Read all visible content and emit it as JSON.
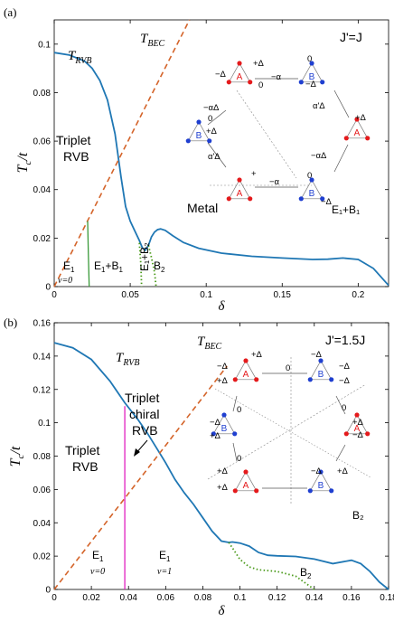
{
  "colors": {
    "rvb_curve": "#1f77b4",
    "bec_line": "#d4642a",
    "phase_boundary_solid_a": "#3a9a3a",
    "phase_boundary_b": "#e020c0",
    "phase_boundary_dotted": "#4a9a1a",
    "site_A": "#e41a1c",
    "site_B": "#1f3fd0"
  },
  "chart_data": [
    {
      "panel": "(a)",
      "type": "line",
      "xlabel": "δ",
      "ylabel": "T_c/t",
      "xlim": [
        0,
        0.22
      ],
      "ylim": [
        0,
        0.11
      ],
      "xticks": [
        "0",
        "0.05",
        "0.1",
        "0.15",
        "0.2"
      ],
      "yticks": [
        "0",
        "0.02",
        "0.04",
        "0.06",
        "0.08",
        "0.1"
      ],
      "corner_label": "J'=J",
      "series": [
        {
          "name": "T_RVB",
          "style": "solid",
          "color": "rvb_curve",
          "x": [
            0,
            0.01,
            0.02,
            0.025,
            0.03,
            0.035,
            0.04,
            0.044,
            0.047,
            0.05,
            0.053,
            0.056,
            0.058,
            0.06,
            0.062,
            0.064,
            0.066,
            0.068,
            0.07,
            0.073,
            0.078,
            0.085,
            0.095,
            0.11,
            0.13,
            0.15,
            0.17,
            0.18,
            0.19,
            0.2,
            0.21,
            0.22
          ],
          "y": [
            0.0965,
            0.0955,
            0.093,
            0.09,
            0.085,
            0.077,
            0.063,
            0.045,
            0.033,
            0.027,
            0.023,
            0.019,
            0.016,
            0.015,
            0.017,
            0.0205,
            0.0225,
            0.0235,
            0.0238,
            0.0232,
            0.021,
            0.0182,
            0.0158,
            0.0138,
            0.0125,
            0.0118,
            0.0112,
            0.0113,
            0.0118,
            0.0112,
            0.0075,
            0.0005
          ]
        },
        {
          "name": "T_BEC",
          "style": "dashed",
          "color": "bec_line",
          "x": [
            0,
            0.089
          ],
          "y": [
            0,
            0.11
          ]
        },
        {
          "name": "E1/E1+B1 boundary",
          "style": "solid",
          "color": "phase_boundary_solid_a",
          "x": [
            0.022,
            0.0225,
            0.023
          ],
          "y": [
            0.027,
            0.013,
            0
          ]
        },
        {
          "name": "E1+B1/E1+B2 boundary",
          "style": "dotted",
          "color": "phase_boundary_dotted",
          "x": [
            0.056,
            0.057,
            0.0575
          ],
          "y": [
            0.018,
            0.009,
            0
          ]
        },
        {
          "name": "E1+B2/B2 boundary",
          "style": "dotted",
          "color": "phase_boundary_dotted",
          "x": [
            0.062,
            0.064,
            0.066,
            0.067
          ],
          "y": [
            0.017,
            0.012,
            0.006,
            0
          ]
        }
      ],
      "annotations": {
        "t_rvb_main": "T",
        "t_rvb_sub": "RVB",
        "t_bec_main": "T",
        "t_bec_sub": "BEC",
        "triplet": "Triplet",
        "rvb": "RVB",
        "metal": "Metal",
        "e1": "E",
        "e1_sub": "1",
        "nu0": "ν=0",
        "e1b1_e": "E",
        "e1b1_sub1": "1",
        "e1b1_plus": "+B",
        "e1b1_sub2": "1",
        "b2": "B",
        "b2_sub": "2",
        "e1b2_vertical": "E₁+B₂"
      },
      "inset": {
        "labels_A": "A",
        "labels_B": "B",
        "bond_terms": [
          "+Δ",
          "−Δ",
          "0",
          "−α",
          "−αΔ",
          "α'Δ",
          "α'Δ",
          "−αΔ",
          "−α",
          "+",
          "0",
          "0",
          "0",
          "−Δ",
          "+Δ",
          "+Δ",
          "−Δ"
        ],
        "caption": "E₁+B₁"
      }
    },
    {
      "panel": "(b)",
      "type": "line",
      "xlabel": "δ",
      "ylabel": "T_c/t",
      "xlim": [
        0,
        0.18
      ],
      "ylim": [
        0,
        0.16
      ],
      "xticks": [
        "0",
        "0.02",
        "0.04",
        "0.06",
        "0.08",
        "0.1",
        "0.12",
        "0.14",
        "0.16",
        "0.18"
      ],
      "yticks": [
        "0",
        "0.02",
        "0.04",
        "0.06",
        "0.08",
        "0.1",
        "0.12",
        "0.14",
        "0.16"
      ],
      "corner_label": "J'=1.5J",
      "series": [
        {
          "name": "T_RVB",
          "style": "solid",
          "color": "rvb_curve",
          "x": [
            0,
            0.01,
            0.02,
            0.03,
            0.038,
            0.045,
            0.05,
            0.055,
            0.06,
            0.065,
            0.07,
            0.075,
            0.08,
            0.085,
            0.09,
            0.094,
            0.096,
            0.1,
            0.105,
            0.11,
            0.115,
            0.12,
            0.13,
            0.14,
            0.15,
            0.16,
            0.165,
            0.17,
            0.175,
            0.18
          ],
          "y": [
            0.148,
            0.145,
            0.138,
            0.125,
            0.112,
            0.102,
            0.094,
            0.085,
            0.076,
            0.066,
            0.058,
            0.051,
            0.043,
            0.035,
            0.029,
            0.0282,
            0.0285,
            0.0278,
            0.026,
            0.0222,
            0.0205,
            0.0202,
            0.0198,
            0.0182,
            0.0155,
            0.0175,
            0.0155,
            0.0108,
            0.0045,
            0.0
          ]
        },
        {
          "name": "T_BEC",
          "style": "dashed",
          "color": "bec_line",
          "x": [
            0,
            0.093
          ],
          "y": [
            0,
            0.134
          ]
        },
        {
          "name": "ν=0 / ν=1 boundary",
          "style": "solid",
          "color": "phase_boundary_b",
          "x": [
            0.038,
            0.038
          ],
          "y": [
            0,
            0.11
          ]
        },
        {
          "name": "E1/B2 boundary",
          "style": "dotted",
          "color": "phase_boundary_dotted",
          "x": [
            0.094,
            0.1,
            0.105,
            0.11,
            0.12,
            0.13,
            0.135,
            0.14
          ],
          "y": [
            0.0282,
            0.018,
            0.0135,
            0.0118,
            0.0108,
            0.008,
            0.004,
            0.0
          ]
        }
      ],
      "annotations": {
        "t_rvb_main": "T",
        "t_rvb_sub": "RVB",
        "t_bec_main": "T",
        "t_bec_sub": "BEC",
        "triplet_chiral_1": "Triplet",
        "triplet_chiral_2": "chiral",
        "triplet_chiral_3": "RVB",
        "triplet": "Triplet",
        "rvb": "RVB",
        "e1_left": "E",
        "e1_left_sub": "1",
        "nu0": "ν=0",
        "e1_right": "E",
        "e1_right_sub": "1",
        "nu1": "ν=1",
        "b2": "B",
        "b2_sub": "2"
      },
      "inset": {
        "labels_A": "A",
        "labels_B": "B",
        "bond_terms": [
          "+Δ",
          "−Δ",
          "+Δ",
          "0",
          "−Δ",
          "−Δ",
          "−Δ",
          "0",
          "0",
          "−Δ",
          "+Δ",
          "+Δ",
          "−Δ",
          "0",
          "+Δ",
          "+Δ",
          "−Δ",
          "+Δ"
        ],
        "caption": "B₂"
      }
    }
  ]
}
